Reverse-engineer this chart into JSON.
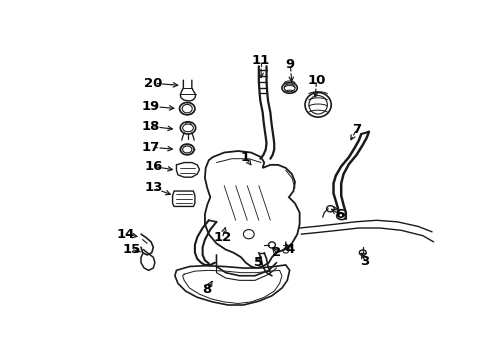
{
  "bg_color": "#ffffff",
  "line_color": "#1a1a1a",
  "label_color": "#000000",
  "label_fontsize": 9.5,
  "parts_labels": {
    "1": [
      237,
      148,
      248,
      162
    ],
    "2": [
      278,
      272,
      272,
      265
    ],
    "3": [
      393,
      283,
      388,
      272
    ],
    "4": [
      295,
      268,
      290,
      260
    ],
    "5": [
      255,
      285,
      258,
      275
    ],
    "6": [
      360,
      222,
      348,
      215
    ],
    "7": [
      382,
      112,
      372,
      130
    ],
    "8": [
      188,
      320,
      195,
      308
    ],
    "9": [
      296,
      28,
      298,
      55
    ],
    "10": [
      330,
      48,
      328,
      75
    ],
    "11": [
      258,
      22,
      258,
      50
    ],
    "12": [
      208,
      252,
      212,
      238
    ],
    "13": [
      118,
      188,
      145,
      198
    ],
    "14": [
      82,
      248,
      102,
      252
    ],
    "15": [
      90,
      268,
      105,
      272
    ],
    "16": [
      118,
      160,
      148,
      165
    ],
    "17": [
      115,
      135,
      148,
      138
    ],
    "18": [
      115,
      108,
      148,
      112
    ],
    "19": [
      115,
      82,
      150,
      85
    ],
    "20": [
      118,
      52,
      155,
      55
    ]
  }
}
